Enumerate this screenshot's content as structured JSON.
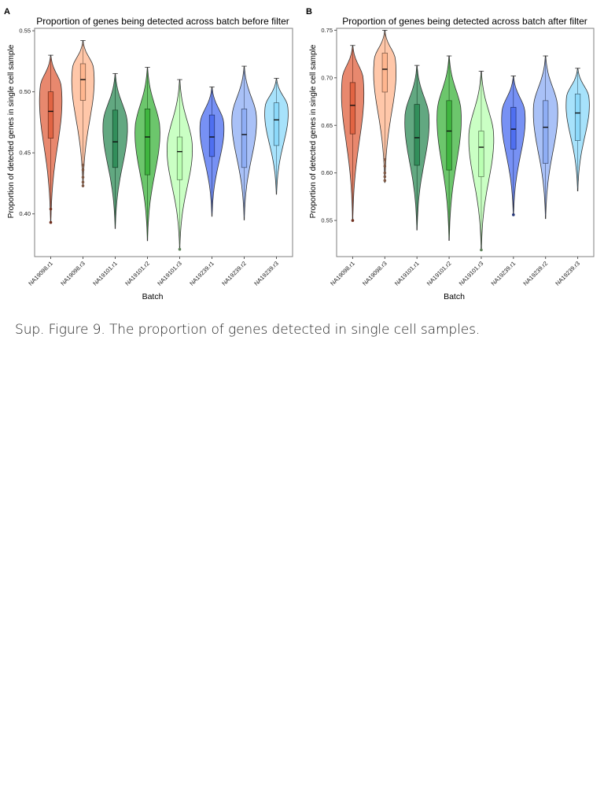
{
  "figure": {
    "caption": "Sup. Figure 9. The proportion of genes detected in single cell samples."
  },
  "colors": {
    "NA19098.r1": "#e0603e",
    "NA19098.r3": "#ffb48c",
    "NA19101.r1": "#2e8b57",
    "NA19101.r2": "#3bb33b",
    "NA19101.r3": "#b8ffb0",
    "NA19239.r1": "#4a6cf0",
    "NA19239.r2": "#8cacf4",
    "NA19239.r3": "#8ad8fa"
  },
  "chart_data": [
    {
      "panel_label": "A",
      "type": "violin",
      "title": "Proportion of genes being detected across batch before filter",
      "xlabel": "Batch",
      "ylabel": "Proportion of detected genes in single cell sample",
      "ylim": [
        0.365,
        0.552
      ],
      "yticks": [
        0.4,
        0.45,
        0.5,
        0.55
      ],
      "ytick_labels": [
        "0.40",
        "0.45",
        "0.50",
        "0.55"
      ],
      "grid": false,
      "categories": [
        "NA19098.r1",
        "NA19098.r3",
        "NA19101.r1",
        "NA19101.r2",
        "NA19101.r3",
        "NA19239.r1",
        "NA19239.r2",
        "NA19239.r3"
      ],
      "series": [
        {
          "min": 0.393,
          "max": 0.53,
          "q1": 0.462,
          "median": 0.484,
          "q3": 0.5,
          "outliers": [
            0.393,
            0.404
          ],
          "density_peak": 0.505
        },
        {
          "min": 0.422,
          "max": 0.542,
          "q1": 0.493,
          "median": 0.51,
          "q3": 0.523,
          "outliers": [
            0.423,
            0.426,
            0.43,
            0.436,
            0.44
          ],
          "density_peak": 0.52
        },
        {
          "min": 0.388,
          "max": 0.515,
          "q1": 0.438,
          "median": 0.459,
          "q3": 0.485,
          "outliers": [],
          "density_peak": 0.475
        },
        {
          "min": 0.378,
          "max": 0.52,
          "q1": 0.432,
          "median": 0.463,
          "q3": 0.486,
          "outliers": [],
          "density_peak": 0.47
        },
        {
          "min": 0.371,
          "max": 0.51,
          "q1": 0.428,
          "median": 0.451,
          "q3": 0.463,
          "outliers": [
            0.371
          ],
          "density_peak": 0.455
        },
        {
          "min": 0.398,
          "max": 0.504,
          "q1": 0.447,
          "median": 0.463,
          "q3": 0.481,
          "outliers": [],
          "density_peak": 0.475
        },
        {
          "min": 0.395,
          "max": 0.521,
          "q1": 0.438,
          "median": 0.465,
          "q3": 0.486,
          "outliers": [],
          "density_peak": 0.48
        },
        {
          "min": 0.416,
          "max": 0.511,
          "q1": 0.456,
          "median": 0.477,
          "q3": 0.491,
          "outliers": [],
          "density_peak": 0.488
        }
      ]
    },
    {
      "panel_label": "B",
      "type": "violin",
      "title": "Proportion of genes being detected across batch after filter",
      "xlabel": "Batch",
      "ylabel": "Proportion of detected genes in single cell sample",
      "ylim": [
        0.512,
        0.752
      ],
      "yticks": [
        0.55,
        0.6,
        0.65,
        0.7,
        0.75
      ],
      "ytick_labels": [
        "0.55",
        "0.60",
        "0.65",
        "0.70",
        "0.75"
      ],
      "grid": false,
      "categories": [
        "NA19098.r1",
        "NA19098.r3",
        "NA19101.r1",
        "NA19101.r2",
        "NA19101.r3",
        "NA19239.r1",
        "NA19239.r2",
        "NA19239.r3"
      ],
      "series": [
        {
          "min": 0.55,
          "max": 0.734,
          "q1": 0.641,
          "median": 0.671,
          "q3": 0.695,
          "outliers": [
            0.55
          ],
          "density_peak": 0.7
        },
        {
          "min": 0.59,
          "max": 0.75,
          "q1": 0.685,
          "median": 0.709,
          "q3": 0.726,
          "outliers": [
            0.592,
            0.596,
            0.6,
            0.607,
            0.614
          ],
          "density_peak": 0.72
        },
        {
          "min": 0.54,
          "max": 0.713,
          "q1": 0.608,
          "median": 0.637,
          "q3": 0.672,
          "outliers": [],
          "density_peak": 0.66
        },
        {
          "min": 0.529,
          "max": 0.723,
          "q1": 0.603,
          "median": 0.644,
          "q3": 0.676,
          "outliers": [],
          "density_peak": 0.665
        },
        {
          "min": 0.519,
          "max": 0.707,
          "q1": 0.596,
          "median": 0.627,
          "q3": 0.644,
          "outliers": [
            0.519
          ],
          "density_peak": 0.64
        },
        {
          "min": 0.555,
          "max": 0.702,
          "q1": 0.625,
          "median": 0.646,
          "q3": 0.669,
          "outliers": [
            0.556
          ],
          "density_peak": 0.665
        },
        {
          "min": 0.552,
          "max": 0.723,
          "q1": 0.61,
          "median": 0.648,
          "q3": 0.676,
          "outliers": [],
          "density_peak": 0.67
        },
        {
          "min": 0.581,
          "max": 0.71,
          "q1": 0.634,
          "median": 0.663,
          "q3": 0.683,
          "outliers": [],
          "density_peak": 0.68
        }
      ]
    }
  ]
}
